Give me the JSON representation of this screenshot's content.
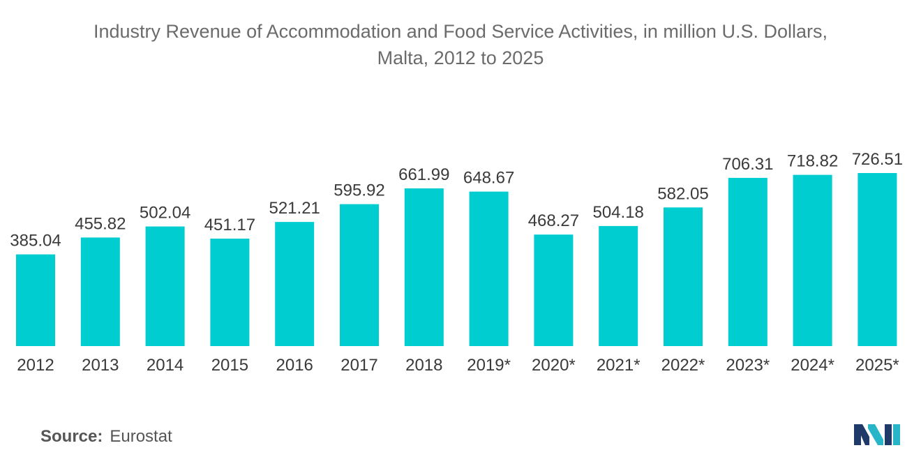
{
  "title": {
    "line1": "Industry Revenue of Accommodation and Food Service Activities, in million U.S. Dollars,",
    "line2": "Malta, 2012 to 2025"
  },
  "chart_data": {
    "type": "bar",
    "categories": [
      "2012",
      "2013",
      "2014",
      "2015",
      "2016",
      "2017",
      "2018",
      "2019*",
      "2020*",
      "2021*",
      "2022*",
      "2023*",
      "2024*",
      "2025*"
    ],
    "values": [
      385.04,
      455.82,
      502.04,
      451.17,
      521.21,
      595.92,
      661.99,
      648.67,
      468.27,
      504.18,
      582.05,
      706.31,
      718.82,
      726.51
    ],
    "value_labels": [
      "385.04",
      "455.82",
      "502.04",
      "451.17",
      "521.21",
      "595.92",
      "661.99",
      "648.67",
      "468.27",
      "504.18",
      "582.05",
      "706.31",
      "718.82",
      "726.51"
    ],
    "xlabel": "",
    "ylabel": "",
    "ylim": [
      0,
      726.51
    ],
    "grid": false,
    "legend": "none",
    "bar_color": "#00cdd0"
  },
  "source": {
    "label": "Source:",
    "value": "Eurostat"
  },
  "logo": {
    "icon": "mordor-logo-icon",
    "colors": [
      "#1f3a68",
      "#29b5c8"
    ]
  }
}
